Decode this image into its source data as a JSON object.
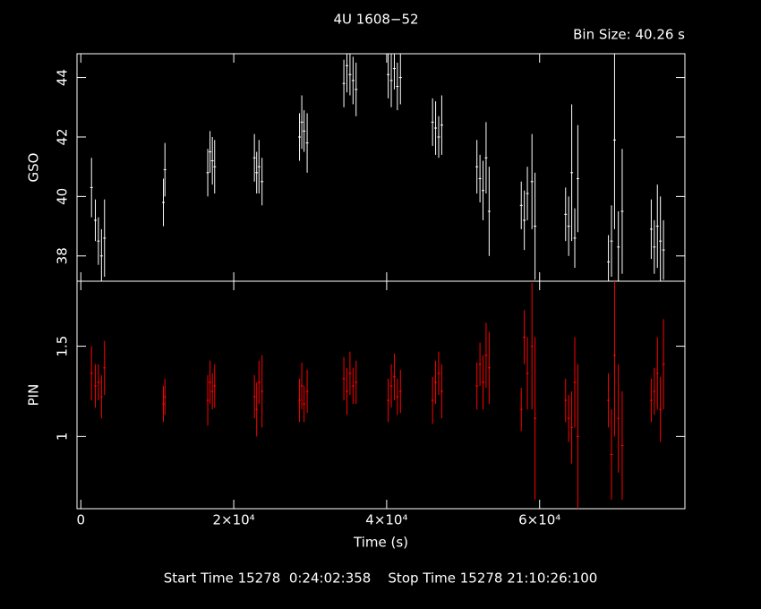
{
  "title": "4U 1608−52",
  "bin_size": "Bin Size: 40.26 s",
  "footer": "Start Time 15278  0:24:02:358    Stop Time 15278 21:10:26:100",
  "chart_data": [
    {
      "type": "scatter",
      "ylabel": "GSO",
      "color": "#ffffff",
      "x": [
        1400,
        1900,
        2300,
        2700,
        3100,
        10800,
        11000,
        16600,
        16900,
        17200,
        17500,
        22700,
        23000,
        23300,
        23700,
        28600,
        28900,
        29200,
        29600,
        34400,
        34800,
        35200,
        35600,
        36000,
        40200,
        40600,
        41000,
        41400,
        41800,
        46000,
        46400,
        46800,
        47200,
        51800,
        52200,
        52600,
        53000,
        53400,
        57600,
        58000,
        58400,
        59000,
        59400,
        63400,
        63800,
        64200,
        64600,
        65000,
        69000,
        69400,
        69800,
        70300,
        70800,
        74600,
        75000,
        75400,
        75800,
        76200
      ],
      "values": [
        40.3,
        39.2,
        38.5,
        38.0,
        38.6,
        39.8,
        40.9,
        40.8,
        41.5,
        41.2,
        41.0,
        41.3,
        40.8,
        41.0,
        40.5,
        42.0,
        42.5,
        42.2,
        41.8,
        43.8,
        44.4,
        44.1,
        43.9,
        43.6,
        44.1,
        43.9,
        44.3,
        43.7,
        44.0,
        42.5,
        42.3,
        42.0,
        42.4,
        41.0,
        40.6,
        40.2,
        41.3,
        39.5,
        39.7,
        39.2,
        40.1,
        40.5,
        39.0,
        39.4,
        39.0,
        40.8,
        38.6,
        40.6,
        37.8,
        38.5,
        41.9,
        38.3,
        39.5,
        38.9,
        38.3,
        39.0,
        38.5,
        38.2
      ],
      "errors": [
        1.0,
        0.7,
        0.8,
        0.9,
        1.3,
        0.8,
        0.9,
        0.8,
        0.7,
        0.8,
        0.9,
        0.8,
        0.7,
        0.9,
        0.8,
        0.8,
        0.9,
        0.7,
        1.0,
        0.8,
        0.9,
        0.7,
        0.8,
        0.9,
        0.8,
        0.9,
        0.7,
        0.8,
        0.9,
        0.8,
        0.9,
        0.7,
        1.0,
        0.9,
        0.8,
        1.0,
        1.2,
        1.5,
        0.8,
        1.0,
        0.9,
        1.6,
        1.8,
        0.9,
        1.0,
        2.3,
        1.0,
        1.8,
        0.9,
        1.2,
        3.0,
        1.2,
        2.1,
        1.0,
        0.9,
        1.4,
        1.5,
        1.0
      ],
      "xlim": [
        -500,
        79000
      ],
      "ylim": [
        37.15,
        44.8
      ],
      "yticks": [
        38,
        40,
        42,
        44
      ]
    },
    {
      "type": "scatter",
      "ylabel": "PIN",
      "xlabel": "Time (s)",
      "color": "#ff0000",
      "x": [
        1400,
        1900,
        2300,
        2700,
        3100,
        10800,
        11000,
        16600,
        16900,
        17200,
        17500,
        22700,
        23000,
        23300,
        23700,
        28600,
        28900,
        29200,
        29600,
        34400,
        34800,
        35200,
        35600,
        36000,
        40200,
        40600,
        41000,
        41400,
        41800,
        46000,
        46400,
        46800,
        47200,
        51800,
        52200,
        52600,
        53000,
        53400,
        57600,
        58000,
        58400,
        59000,
        59400,
        63400,
        63800,
        64200,
        64600,
        65000,
        69000,
        69400,
        69800,
        70300,
        70800,
        74600,
        75000,
        75400,
        75800,
        76200
      ],
      "values": [
        1.35,
        1.28,
        1.3,
        1.22,
        1.38,
        1.18,
        1.22,
        1.2,
        1.3,
        1.25,
        1.28,
        1.22,
        1.15,
        1.3,
        1.25,
        1.2,
        1.28,
        1.18,
        1.25,
        1.32,
        1.25,
        1.35,
        1.28,
        1.3,
        1.2,
        1.28,
        1.33,
        1.22,
        1.25,
        1.2,
        1.3,
        1.35,
        1.25,
        1.28,
        1.4,
        1.3,
        1.45,
        1.38,
        1.15,
        1.55,
        1.35,
        1.5,
        1.1,
        1.2,
        1.1,
        1.05,
        1.3,
        1.0,
        1.2,
        0.9,
        1.45,
        1.1,
        0.95,
        1.2,
        1.25,
        1.35,
        1.15,
        1.4
      ],
      "errors": [
        0.15,
        0.12,
        0.1,
        0.12,
        0.15,
        0.1,
        0.1,
        0.14,
        0.12,
        0.1,
        0.12,
        0.12,
        0.15,
        0.12,
        0.2,
        0.12,
        0.13,
        0.1,
        0.12,
        0.12,
        0.13,
        0.12,
        0.1,
        0.12,
        0.12,
        0.12,
        0.13,
        0.1,
        0.12,
        0.13,
        0.12,
        0.12,
        0.15,
        0.13,
        0.12,
        0.15,
        0.18,
        0.2,
        0.12,
        0.15,
        0.2,
        0.35,
        0.45,
        0.12,
        0.13,
        0.2,
        0.25,
        0.4,
        0.15,
        0.25,
        0.45,
        0.3,
        0.3,
        0.12,
        0.13,
        0.2,
        0.18,
        0.25
      ],
      "xlim": [
        -500,
        79000
      ],
      "ylim": [
        0.6,
        1.86
      ],
      "yticks": [
        1,
        1.5
      ],
      "xticks": [
        0,
        {
          "value": 20000,
          "label": "2×10⁴"
        },
        {
          "value": 40000,
          "label": "4×10⁴"
        },
        {
          "value": 60000,
          "label": "6×10⁴"
        }
      ]
    }
  ]
}
